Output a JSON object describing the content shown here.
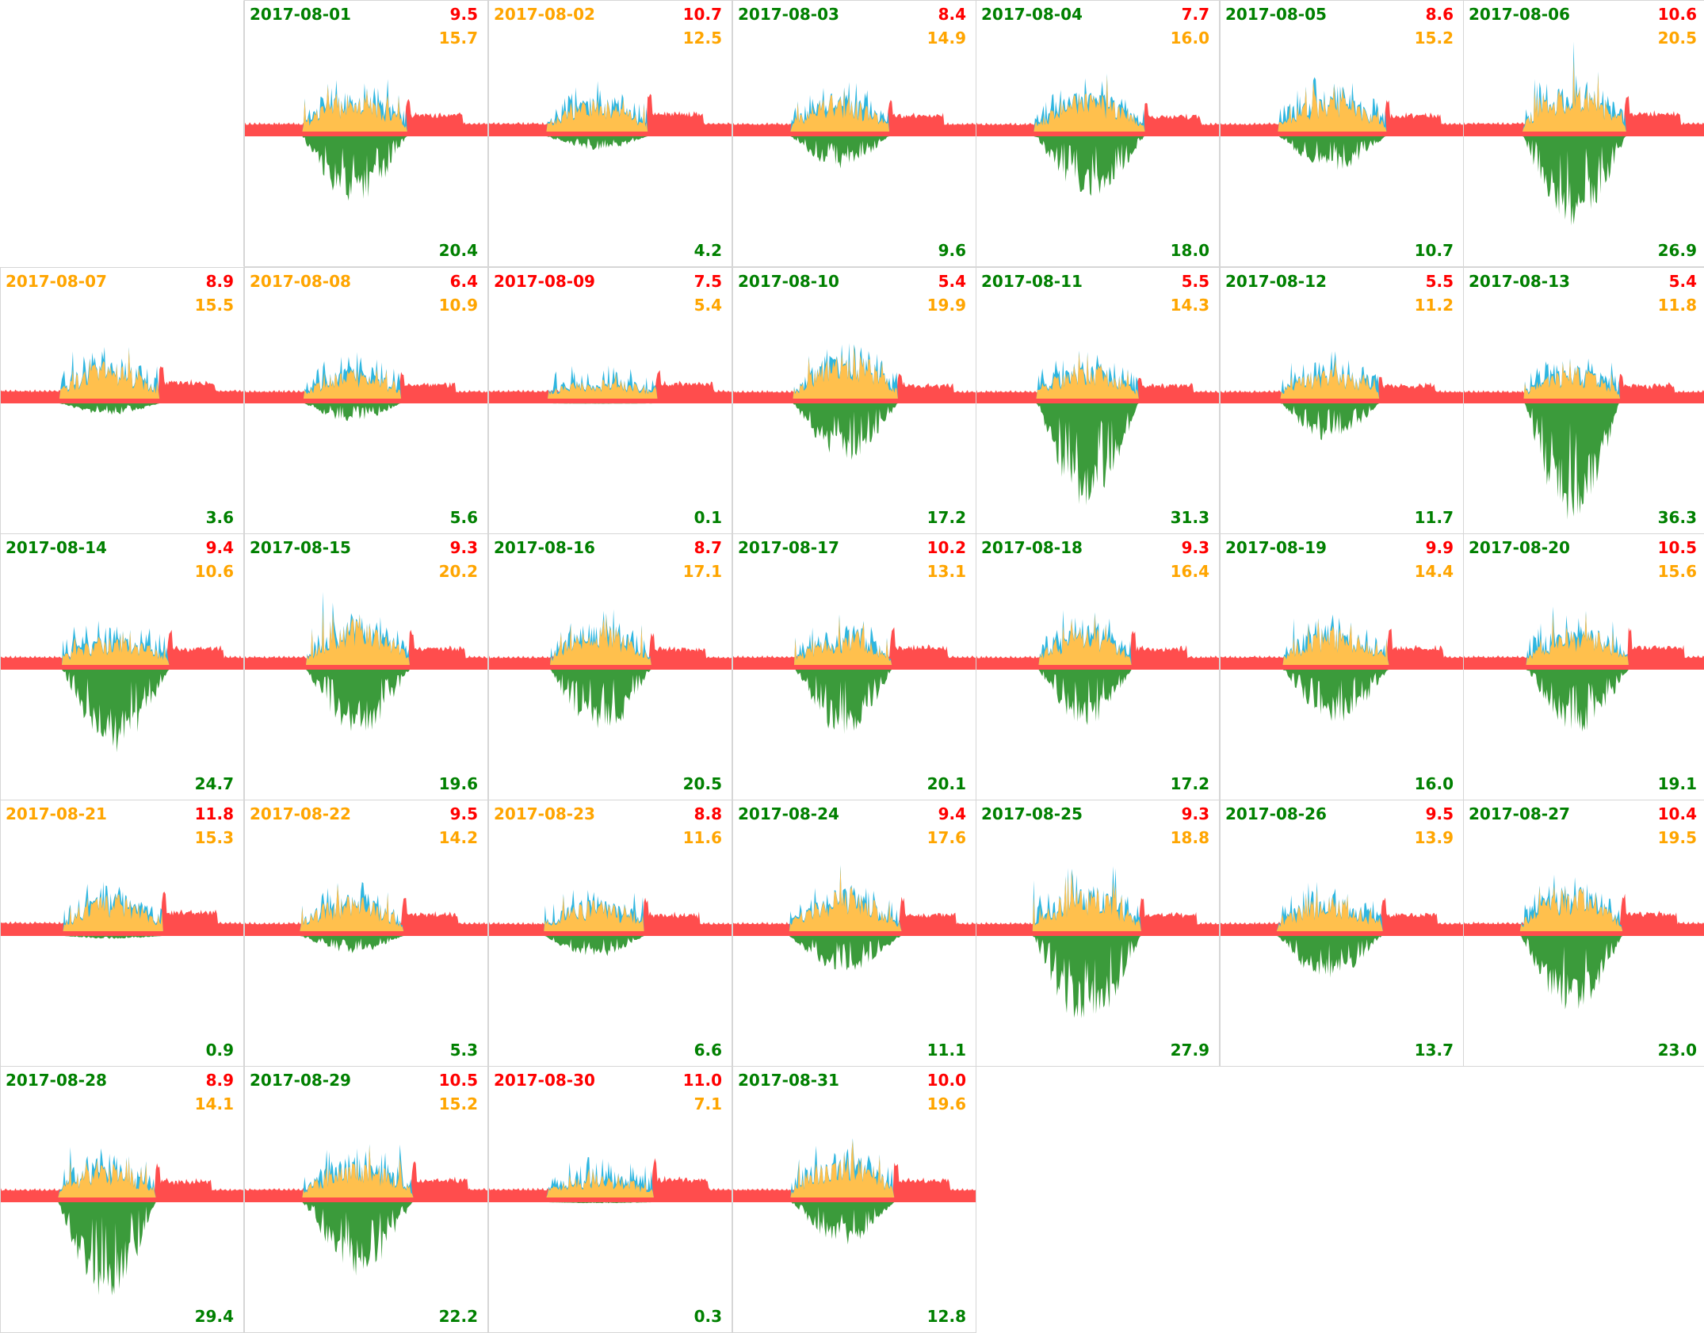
{
  "colors": {
    "green": "#008000",
    "orange": "#ffa500",
    "red": "#ff0000",
    "grid_line": "#d6d6d6",
    "grid_red_fill": "#ff4d4d",
    "grid_green_fill": "#3b9b3b",
    "grid_yellow_fill": "#ffc04d",
    "grid_blue_fill": "#2eb6e0"
  },
  "chart_data": {
    "type": "area",
    "title": "",
    "days": [
      {
        "date": "2017-08-01",
        "date_color": "green",
        "consumption": "9.5",
        "self": "15.7",
        "production": "20.4"
      },
      {
        "date": "2017-08-02",
        "date_color": "orange",
        "consumption": "10.7",
        "self": "12.5",
        "production": "4.2"
      },
      {
        "date": "2017-08-03",
        "date_color": "green",
        "consumption": "8.4",
        "self": "14.9",
        "production": "9.6"
      },
      {
        "date": "2017-08-04",
        "date_color": "green",
        "consumption": "7.7",
        "self": "16.0",
        "production": "18.0"
      },
      {
        "date": "2017-08-05",
        "date_color": "green",
        "consumption": "8.6",
        "self": "15.2",
        "production": "10.7"
      },
      {
        "date": "2017-08-06",
        "date_color": "green",
        "consumption": "10.6",
        "self": "20.5",
        "production": "26.9"
      },
      {
        "date": "2017-08-07",
        "date_color": "orange",
        "consumption": "8.9",
        "self": "15.5",
        "production": "3.6"
      },
      {
        "date": "2017-08-08",
        "date_color": "orange",
        "consumption": "6.4",
        "self": "10.9",
        "production": "5.6"
      },
      {
        "date": "2017-08-09",
        "date_color": "red",
        "consumption": "7.5",
        "self": "5.4",
        "production": "0.1"
      },
      {
        "date": "2017-08-10",
        "date_color": "green",
        "consumption": "5.4",
        "self": "19.9",
        "production": "17.2"
      },
      {
        "date": "2017-08-11",
        "date_color": "green",
        "consumption": "5.5",
        "self": "14.3",
        "production": "31.3"
      },
      {
        "date": "2017-08-12",
        "date_color": "green",
        "consumption": "5.5",
        "self": "11.2",
        "production": "11.7"
      },
      {
        "date": "2017-08-13",
        "date_color": "green",
        "consumption": "5.4",
        "self": "11.8",
        "production": "36.3"
      },
      {
        "date": "2017-08-14",
        "date_color": "green",
        "consumption": "9.4",
        "self": "10.6",
        "production": "24.7"
      },
      {
        "date": "2017-08-15",
        "date_color": "green",
        "consumption": "9.3",
        "self": "20.2",
        "production": "19.6"
      },
      {
        "date": "2017-08-16",
        "date_color": "green",
        "consumption": "8.7",
        "self": "17.1",
        "production": "20.5"
      },
      {
        "date": "2017-08-17",
        "date_color": "green",
        "consumption": "10.2",
        "self": "13.1",
        "production": "20.1"
      },
      {
        "date": "2017-08-18",
        "date_color": "green",
        "consumption": "9.3",
        "self": "16.4",
        "production": "17.2"
      },
      {
        "date": "2017-08-19",
        "date_color": "green",
        "consumption": "9.9",
        "self": "14.4",
        "production": "16.0"
      },
      {
        "date": "2017-08-20",
        "date_color": "green",
        "consumption": "10.5",
        "self": "15.6",
        "production": "19.1"
      },
      {
        "date": "2017-08-21",
        "date_color": "orange",
        "consumption": "11.8",
        "self": "15.3",
        "production": "0.9"
      },
      {
        "date": "2017-08-22",
        "date_color": "orange",
        "consumption": "9.5",
        "self": "14.2",
        "production": "5.3"
      },
      {
        "date": "2017-08-23",
        "date_color": "orange",
        "consumption": "8.8",
        "self": "11.6",
        "production": "6.6"
      },
      {
        "date": "2017-08-24",
        "date_color": "green",
        "consumption": "9.4",
        "self": "17.6",
        "production": "11.1"
      },
      {
        "date": "2017-08-25",
        "date_color": "green",
        "consumption": "9.3",
        "self": "18.8",
        "production": "27.9"
      },
      {
        "date": "2017-08-26",
        "date_color": "green",
        "consumption": "9.5",
        "self": "13.9",
        "production": "13.7"
      },
      {
        "date": "2017-08-27",
        "date_color": "green",
        "consumption": "10.4",
        "self": "19.5",
        "production": "23.0"
      },
      {
        "date": "2017-08-28",
        "date_color": "green",
        "consumption": "8.9",
        "self": "14.1",
        "production": "29.4"
      },
      {
        "date": "2017-08-29",
        "date_color": "green",
        "consumption": "10.5",
        "self": "15.2",
        "production": "22.2"
      },
      {
        "date": "2017-08-30",
        "date_color": "red",
        "consumption": "11.0",
        "self": "7.1",
        "production": "0.3"
      },
      {
        "date": "2017-08-31",
        "date_color": "green",
        "consumption": "10.0",
        "self": "19.6",
        "production": "12.8"
      }
    ]
  }
}
